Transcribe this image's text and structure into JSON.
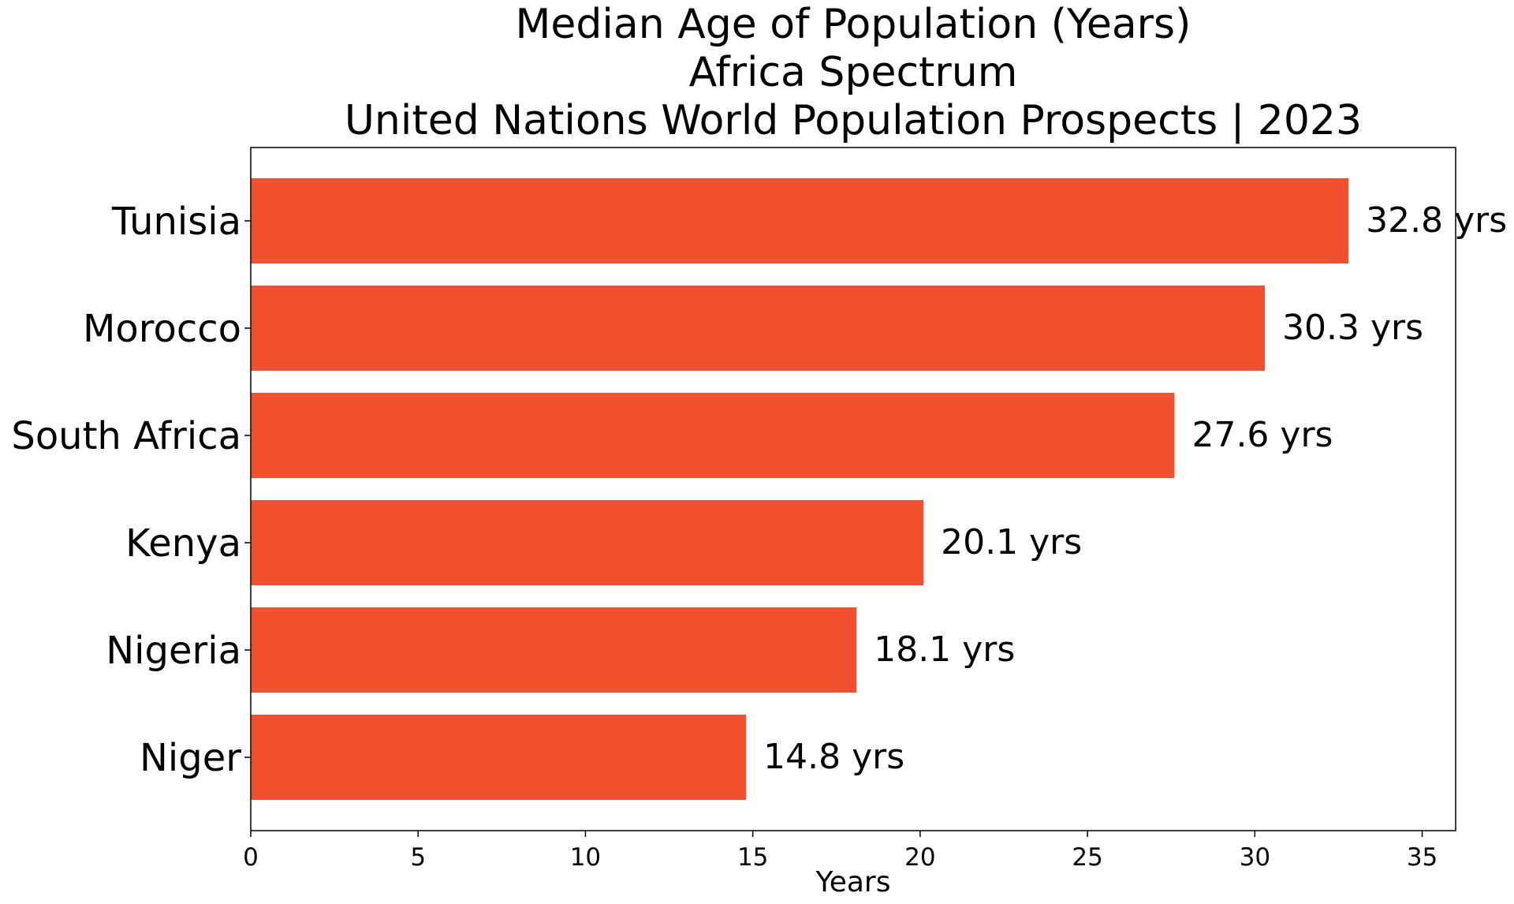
{
  "chart_data": {
    "type": "bar",
    "orientation": "horizontal",
    "title": "Median Age of Population (Years)\nAfrica Spectrum\nUnited Nations World Population Prospects | 2023",
    "title_lines": [
      "Median Age of Population (Years)",
      "Africa Spectrum",
      "United Nations World Population Prospects | 2023"
    ],
    "categories": [
      "Tunisia",
      "Morocco",
      "South Africa",
      "Kenya",
      "Nigeria",
      "Niger"
    ],
    "values": [
      32.8,
      30.3,
      27.6,
      20.1,
      18.1,
      14.8
    ],
    "value_labels": [
      "32.8 yrs",
      "30.3 yrs",
      "27.6 yrs",
      "20.1 yrs",
      "18.1 yrs",
      "14.8 yrs"
    ],
    "xlabel": "Years",
    "ylabel": "",
    "xlim": [
      0,
      36
    ],
    "xticks": [
      0,
      5,
      10,
      15,
      20,
      25,
      30,
      35
    ],
    "grid": false,
    "bar_color": "#f24f2f"
  }
}
